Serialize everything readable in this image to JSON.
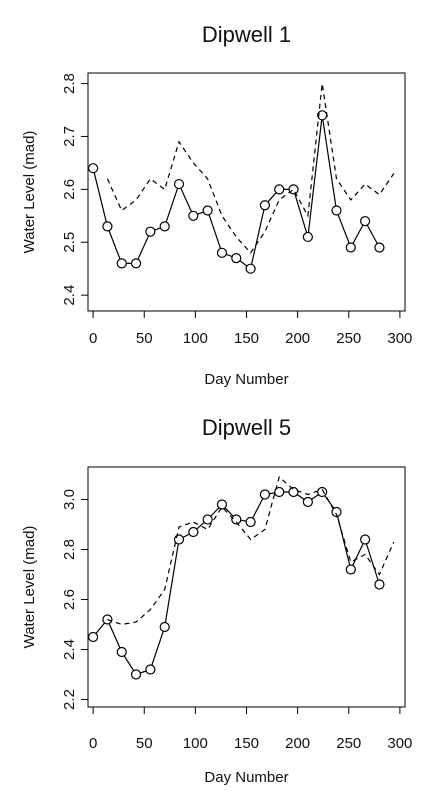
{
  "chart_data": [
    {
      "type": "line",
      "title": "Dipwell 1",
      "xlabel": "Day Number",
      "ylabel": "Water Level (mad)",
      "xlim": [
        -5,
        305
      ],
      "ylim": [
        2.37,
        2.82
      ],
      "xticks": [
        "0",
        "50",
        "100",
        "150",
        "200",
        "250",
        "300"
      ],
      "yticks": [
        "2.4",
        "2.5",
        "2.6",
        "2.7",
        "2.8"
      ],
      "grid": false,
      "series": [
        {
          "style": "solid line with open circles",
          "x": [
            0,
            14,
            28,
            42,
            56,
            70,
            84,
            98,
            112,
            126,
            140,
            154,
            168,
            182,
            196,
            210,
            224,
            238,
            252,
            266,
            280
          ],
          "values": [
            2.64,
            2.53,
            2.46,
            2.46,
            2.52,
            2.53,
            2.61,
            2.55,
            2.56,
            2.48,
            2.47,
            2.45,
            2.57,
            2.6,
            2.6,
            2.51,
            2.74,
            2.56,
            2.49,
            2.54,
            2.49
          ]
        },
        {
          "style": "dashed line",
          "x": [
            14,
            28,
            42,
            56,
            70,
            84,
            98,
            112,
            126,
            140,
            154,
            168,
            182,
            196,
            210,
            224,
            238,
            252,
            266,
            280,
            294
          ],
          "values": [
            2.62,
            2.56,
            2.58,
            2.62,
            2.6,
            2.69,
            2.65,
            2.62,
            2.55,
            2.51,
            2.48,
            2.52,
            2.58,
            2.6,
            2.55,
            2.8,
            2.62,
            2.58,
            2.61,
            2.59,
            2.63
          ]
        }
      ]
    },
    {
      "type": "line",
      "title": "Dipwell 5",
      "xlabel": "Day Number",
      "ylabel": "Water Level (mad)",
      "xlim": [
        -5,
        305
      ],
      "ylim": [
        2.17,
        3.13
      ],
      "xticks": [
        "0",
        "50",
        "100",
        "150",
        "200",
        "250",
        "300"
      ],
      "yticks": [
        "2.2",
        "2.4",
        "2.6",
        "2.8",
        "3.0"
      ],
      "grid": false,
      "series": [
        {
          "style": "solid line with open circles",
          "x": [
            0,
            14,
            28,
            42,
            56,
            70,
            84,
            98,
            112,
            126,
            140,
            154,
            168,
            182,
            196,
            210,
            224,
            238,
            252,
            266,
            280
          ],
          "values": [
            2.45,
            2.52,
            2.39,
            2.3,
            2.32,
            2.49,
            2.84,
            2.87,
            2.92,
            2.98,
            2.92,
            2.91,
            3.02,
            3.03,
            3.03,
            2.99,
            3.03,
            2.95,
            2.72,
            2.84,
            2.66
          ]
        },
        {
          "style": "dashed line",
          "x": [
            14,
            28,
            42,
            56,
            70,
            84,
            98,
            112,
            126,
            140,
            154,
            168,
            182,
            196,
            210,
            224,
            238,
            252,
            266,
            280,
            294
          ],
          "values": [
            2.52,
            2.5,
            2.51,
            2.56,
            2.64,
            2.89,
            2.91,
            2.88,
            2.97,
            2.91,
            2.84,
            2.88,
            3.09,
            3.04,
            3.02,
            3.04,
            2.94,
            2.75,
            2.78,
            2.7,
            2.83
          ]
        }
      ]
    }
  ]
}
